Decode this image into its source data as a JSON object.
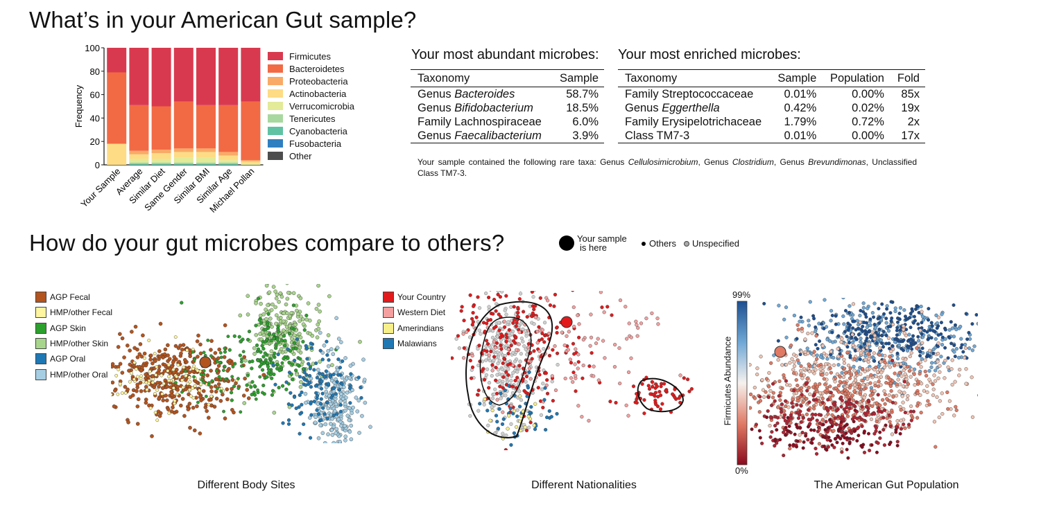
{
  "section1_title": "What’s in your American Gut sample?",
  "section2_title": "How do your gut microbes compare to others?",
  "colors": {
    "Firmicutes": "#d9394e",
    "Bacteroidetes": "#f26a44",
    "Proteobacteria": "#f9aa67",
    "Actinobacteria": "#fddc85",
    "Verrucomicrobia": "#e3ea98",
    "Tenericutes": "#a8d8a0",
    "Cyanobacteria": "#5fc2a3",
    "Fusobacteria": "#2e7fbf",
    "Other": "#4d4d4d"
  },
  "chart_data": [
    {
      "type": "bar",
      "stacked": true,
      "ylabel": "Frequency",
      "ylim": [
        0,
        100
      ],
      "yticks": [
        0,
        20,
        40,
        60,
        80,
        100
      ],
      "categories": [
        "Your Sample",
        "Average",
        "Similar Diet",
        "Same Gender",
        "Similar BMI",
        "Similar Age",
        "Michael Pollan"
      ],
      "series": [
        {
          "name": "Firmicutes",
          "values": [
            21,
            49,
            50,
            46,
            49,
            49,
            46
          ]
        },
        {
          "name": "Bacteroidetes",
          "values": [
            61,
            39,
            37,
            40,
            37,
            40,
            50
          ]
        },
        {
          "name": "Proteobacteria",
          "values": [
            0,
            3,
            3,
            3,
            3,
            3,
            1
          ]
        },
        {
          "name": "Actinobacteria",
          "values": [
            18,
            4,
            5,
            5,
            5,
            4,
            2
          ]
        },
        {
          "name": "Verrucomicrobia",
          "values": [
            0,
            3,
            3,
            4,
            4,
            2,
            1
          ]
        },
        {
          "name": "Tenericutes",
          "values": [
            0,
            1,
            1,
            1,
            1,
            1,
            0
          ]
        },
        {
          "name": "Cyanobacteria",
          "values": [
            0,
            1,
            1,
            1,
            1,
            1,
            0
          ]
        },
        {
          "name": "Fusobacteria",
          "values": [
            0,
            0,
            0,
            0,
            0,
            0,
            0
          ]
        },
        {
          "name": "Other",
          "values": [
            0,
            0,
            0,
            0,
            0,
            0,
            0
          ]
        }
      ],
      "legend_position": "right"
    },
    {
      "type": "table",
      "title": "Your most abundant microbes:",
      "columns": [
        "Taxonomy",
        "Sample"
      ],
      "rows": [
        {
          "rank": "Genus",
          "name": "Bacteroides",
          "italic": true,
          "sample": "58.7%"
        },
        {
          "rank": "Genus",
          "name": "Bifidobacterium",
          "italic": true,
          "sample": "18.5%"
        },
        {
          "rank": "Family",
          "name": "Lachnospiraceae",
          "italic": false,
          "sample": "6.0%"
        },
        {
          "rank": "Genus",
          "name": "Faecalibacterium",
          "italic": true,
          "sample": "3.9%"
        }
      ]
    },
    {
      "type": "table",
      "title": "Your most enriched microbes:",
      "columns": [
        "Taxonomy",
        "Sample",
        "Population",
        "Fold"
      ],
      "rows": [
        {
          "rank": "Family",
          "name": "Streptococcaceae",
          "italic": false,
          "sample": "0.01%",
          "population": "0.00%",
          "fold": "85x"
        },
        {
          "rank": "Genus",
          "name": "Eggerthella",
          "italic": true,
          "sample": "0.42%",
          "population": "0.02%",
          "fold": "19x"
        },
        {
          "rank": "Family",
          "name": "Erysipelotrichaceae",
          "italic": false,
          "sample": "1.79%",
          "population": "0.72%",
          "fold": "2x"
        },
        {
          "rank": "Class",
          "name": "TM7-3",
          "italic": false,
          "sample": "0.01%",
          "population": "0.00%",
          "fold": "17x"
        }
      ]
    },
    {
      "type": "scatter",
      "title": "Different Body Sites",
      "legend": [
        {
          "name": "AGP Fecal",
          "color": "#b3541e"
        },
        {
          "name": "HMP/other Fecal",
          "color": "#fff5a0"
        },
        {
          "name": "AGP Skin",
          "color": "#2ca02c"
        },
        {
          "name": "HMP/other Skin",
          "color": "#a8d58c"
        },
        {
          "name": "AGP Oral",
          "color": "#1f78b4"
        },
        {
          "name": "HMP/other Oral",
          "color": "#a6cee3"
        }
      ]
    },
    {
      "type": "scatter",
      "title": "Different Nationalities",
      "legend": [
        {
          "name": "Your Country",
          "color": "#e31a1c"
        },
        {
          "name": "Western Diet",
          "color": "#f4a0a0"
        },
        {
          "name": "Amerindians",
          "color": "#f7ef8a"
        },
        {
          "name": "Malawians",
          "color": "#1f78b4"
        }
      ]
    },
    {
      "type": "scatter",
      "title": "The American Gut Population",
      "colorbar": {
        "label": "Firmicutes Abundance",
        "max_label": "99%",
        "min_label": "0%"
      }
    }
  ],
  "rare_taxa": {
    "prefix": "Your sample contained the following rare taxa: ",
    "items": [
      {
        "rank": "Genus",
        "name": "Cellulosimicrobium"
      },
      {
        "rank": "Genus",
        "name": "Clostridium"
      },
      {
        "rank": "Genus",
        "name": "Brevundimonas"
      }
    ],
    "suffix": "Unclassified Class TM7-3."
  },
  "key": {
    "your_sample_label_1": "Your sample",
    "your_sample_label_2": "is here",
    "others_label": "Others",
    "unspecified_label": "Unspecified"
  }
}
